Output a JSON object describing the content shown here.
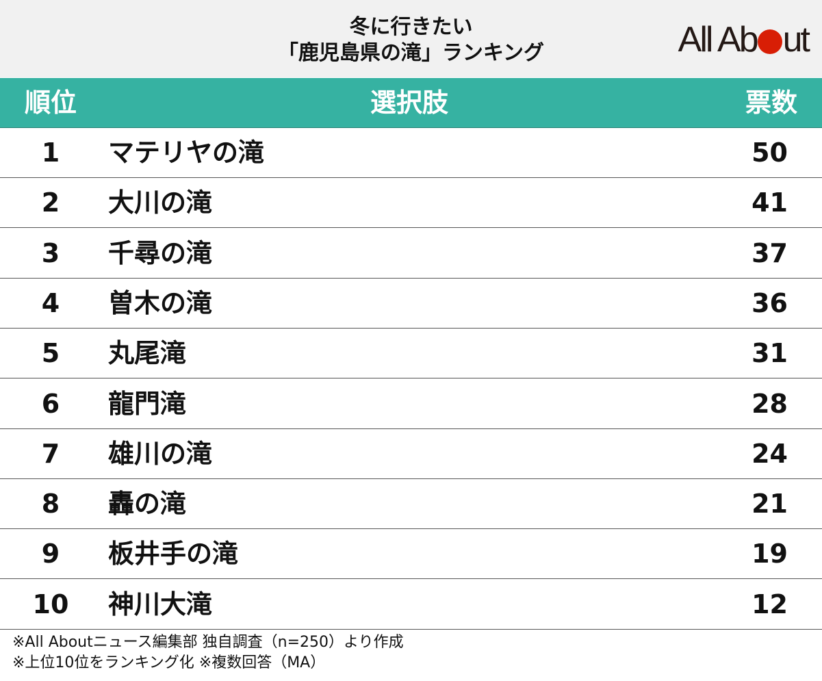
{
  "title_line1": "冬に行きたい",
  "title_line2": "「鹿児島県の滝」ランキング",
  "logo": {
    "part1": "All Ab",
    "part2": "ut",
    "dot_color": "#d81e05"
  },
  "header_color": "#36b2a2",
  "columns": {
    "rank": "順位",
    "choice": "選択肢",
    "votes": "票数"
  },
  "chart_data": {
    "type": "table",
    "title": "冬に行きたい「鹿児島県の滝」ランキング",
    "columns": [
      "順位",
      "選択肢",
      "票数"
    ],
    "rows": [
      {
        "rank": "1",
        "name": "マテリヤの滝",
        "votes": "50"
      },
      {
        "rank": "2",
        "name": "大川の滝",
        "votes": "41"
      },
      {
        "rank": "3",
        "name": "千尋の滝",
        "votes": "37"
      },
      {
        "rank": "4",
        "name": "曽木の滝",
        "votes": "36"
      },
      {
        "rank": "5",
        "name": "丸尾滝",
        "votes": "31"
      },
      {
        "rank": "6",
        "name": "龍門滝",
        "votes": "28"
      },
      {
        "rank": "7",
        "name": "雄川の滝",
        "votes": "24"
      },
      {
        "rank": "8",
        "name": "轟の滝",
        "votes": "21"
      },
      {
        "rank": "9",
        "name": "板井手の滝",
        "votes": "19"
      },
      {
        "rank": "10",
        "name": "神川大滝",
        "votes": "12"
      }
    ]
  },
  "footer": {
    "note1": "※All Aboutニュース編集部 独自調査（n=250）より作成",
    "note2": "※上位10位をランキング化 ※複数回答（MA）"
  }
}
